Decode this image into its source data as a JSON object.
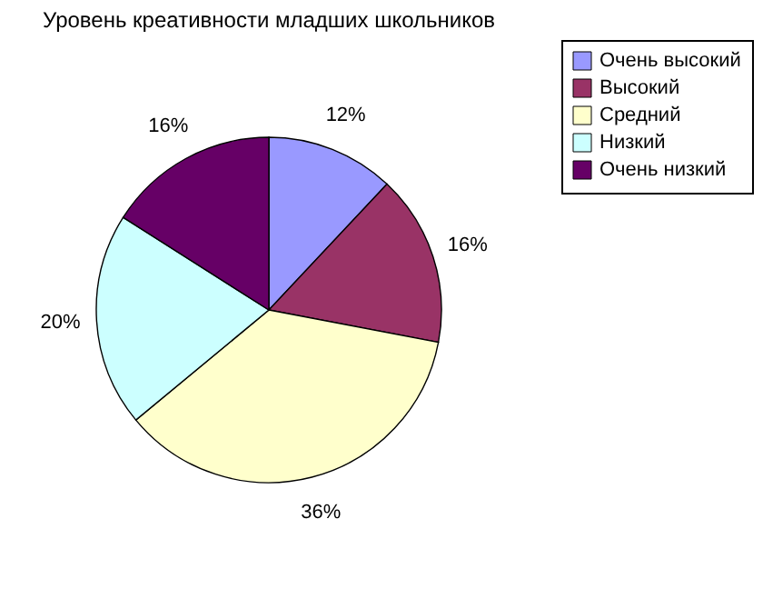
{
  "chart_data": {
    "type": "pie",
    "title": "Уровень креативности младших школьников",
    "categories": [
      "Очень высокий",
      "Высокий",
      "Средний",
      "Низкий",
      "Очень низкий"
    ],
    "values": [
      12,
      16,
      36,
      20,
      16
    ],
    "value_labels": [
      "12%",
      "16%",
      "36%",
      "20%",
      "16%"
    ],
    "colors": [
      "#9999ff",
      "#993366",
      "#ffffcc",
      "#ccffff",
      "#660066"
    ],
    "legend": "right"
  }
}
